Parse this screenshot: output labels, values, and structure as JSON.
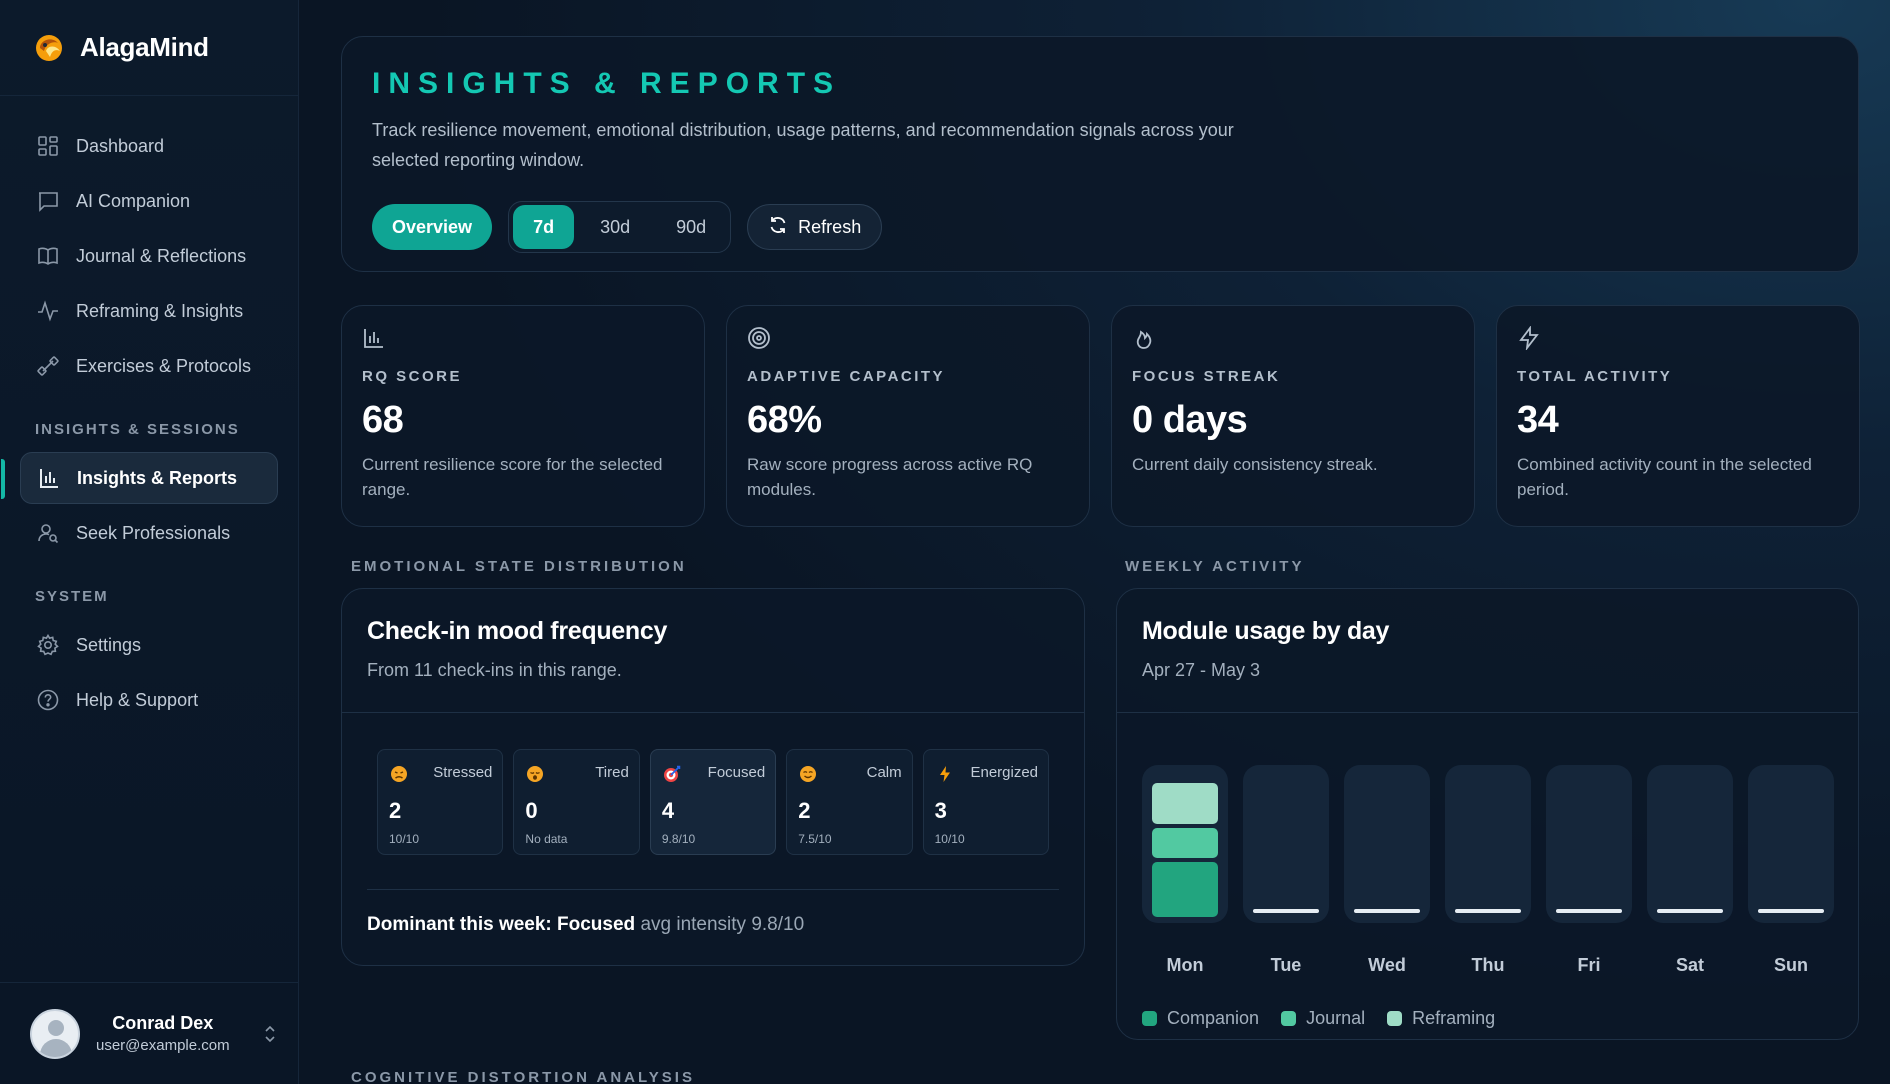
{
  "brand": {
    "name": "AlagaMind"
  },
  "sidebar": {
    "items": [
      {
        "label": "Dashboard",
        "icon": "dashboard-icon"
      },
      {
        "label": "AI Companion",
        "icon": "chat-icon"
      },
      {
        "label": "Journal & Reflections",
        "icon": "book-icon"
      },
      {
        "label": "Reframing & Insights",
        "icon": "activity-icon"
      },
      {
        "label": "Exercises & Protocols",
        "icon": "dumbbell-icon"
      }
    ],
    "section_insights": "INSIGHTS & SESSIONS",
    "insights_items": [
      {
        "label": "Insights & Reports",
        "icon": "bar-chart-icon",
        "active": true
      },
      {
        "label": "Seek Professionals",
        "icon": "user-search-icon"
      }
    ],
    "section_system": "SYSTEM",
    "system_items": [
      {
        "label": "Settings",
        "icon": "gear-icon"
      },
      {
        "label": "Help & Support",
        "icon": "help-icon"
      }
    ]
  },
  "user": {
    "name": "Conrad Dex",
    "email": "user@example.com"
  },
  "hero": {
    "title": "INSIGHTS & REPORTS",
    "description": "Track resilience movement, emotional distribution, usage patterns, and recommendation signals across your selected reporting window.",
    "overview_label": "Overview",
    "ranges": [
      "7d",
      "30d",
      "90d"
    ],
    "active_range": "7d",
    "refresh_label": "Refresh"
  },
  "stats": [
    {
      "label": "RQ SCORE",
      "value": "68",
      "desc": "Current resilience score for the selected range.",
      "icon": "bar-chart-icon"
    },
    {
      "label": "ADAPTIVE CAPACITY",
      "value": "68%",
      "desc": "Raw score progress across active RQ modules.",
      "icon": "target-icon"
    },
    {
      "label": "FOCUS STREAK",
      "value": "0 days",
      "desc": "Current daily consistency streak.",
      "icon": "flame-icon"
    },
    {
      "label": "TOTAL ACTIVITY",
      "value": "34",
      "desc": "Combined activity count in the selected period.",
      "icon": "bolt-icon"
    }
  ],
  "emotional": {
    "section_label": "EMOTIONAL STATE DISTRIBUTION",
    "title": "Check-in mood frequency",
    "subtitle": "From 11 check-ins in this range.",
    "moods": [
      {
        "name": "Stressed",
        "count": "2",
        "intensity": "10/10",
        "icon": "stressed-face-icon"
      },
      {
        "name": "Tired",
        "count": "0",
        "intensity": "No data",
        "icon": "tired-face-icon"
      },
      {
        "name": "Focused",
        "count": "4",
        "intensity": "9.8/10",
        "icon": "target-dart-icon"
      },
      {
        "name": "Calm",
        "count": "2",
        "intensity": "7.5/10",
        "icon": "calm-face-icon"
      },
      {
        "name": "Energized",
        "count": "3",
        "intensity": "10/10",
        "icon": "lightning-icon"
      }
    ],
    "dominant_prefix": "Dominant this week: Focused",
    "dominant_suffix": "avg intensity 9.8/10"
  },
  "weekly": {
    "section_label": "WEEKLY ACTIVITY",
    "title": "Module usage by day",
    "subtitle": "Apr 27 - May 3",
    "colors": {
      "companion": "#22a57f",
      "journal": "#52c9a1",
      "reframing": "#9fdcc6"
    }
  },
  "chart_data": {
    "type": "bar",
    "stacked": true,
    "categories": [
      "Mon",
      "Tue",
      "Wed",
      "Thu",
      "Fri",
      "Sat",
      "Sun"
    ],
    "series": [
      {
        "name": "Companion",
        "values": [
          3,
          0,
          0,
          0,
          0,
          0,
          0
        ]
      },
      {
        "name": "Journal",
        "values": [
          1.7,
          0,
          0,
          0,
          0,
          0,
          0
        ]
      },
      {
        "name": "Reframing",
        "values": [
          2.3,
          0,
          0,
          0,
          0,
          0,
          0
        ]
      }
    ],
    "legend": "bottom-left"
  },
  "cognitive": {
    "section_label": "COGNITIVE DISTORTION ANALYSIS"
  }
}
